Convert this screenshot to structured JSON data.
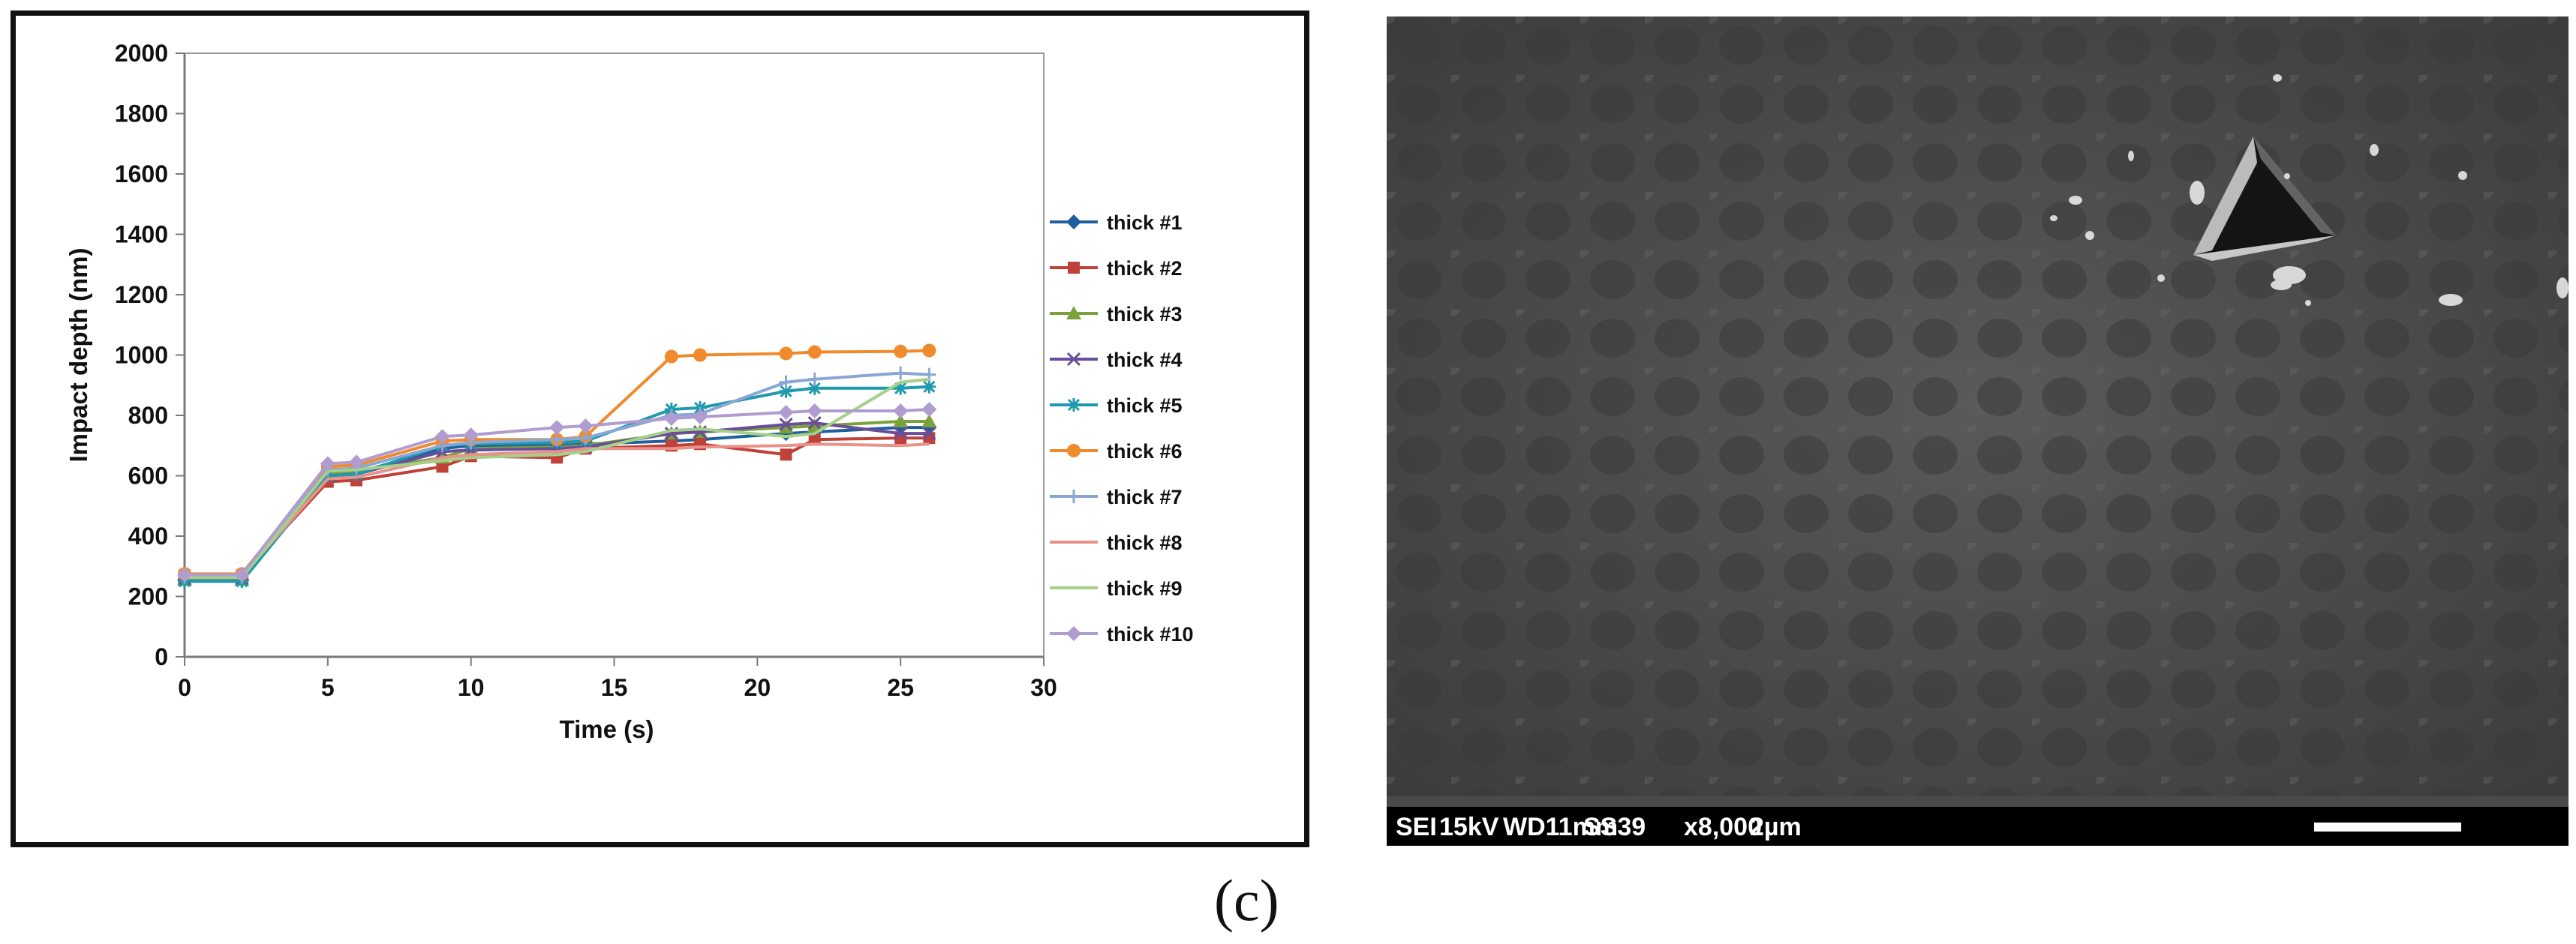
{
  "chart_data": {
    "type": "line",
    "title": "",
    "xlabel": "Time (s)",
    "ylabel": "Impact depth (nm)",
    "xlim": [
      0,
      30
    ],
    "ylim": [
      0,
      2000
    ],
    "xticks": [
      "0",
      "5",
      "10",
      "15",
      "20",
      "25",
      "30"
    ],
    "yticks": [
      "0",
      "200",
      "400",
      "600",
      "800",
      "1000",
      "1200",
      "1400",
      "1600",
      "1800",
      "2000"
    ],
    "grid": false,
    "legend_position": "right",
    "series": [
      {
        "name": "thick  #1",
        "color": "#1f5f9f",
        "marker": "diamond",
        "x": [
          0,
          2,
          5,
          6,
          9,
          10,
          13,
          14,
          17,
          18,
          21,
          22,
          25,
          26
        ],
        "y": [
          255,
          255,
          605,
          610,
          690,
          700,
          700,
          705,
          715,
          720,
          740,
          745,
          760,
          760
        ]
      },
      {
        "name": "thick #2",
        "color": "#c0413a",
        "marker": "square",
        "x": [
          0,
          2,
          5,
          6,
          9,
          10,
          13,
          14,
          17,
          18,
          21,
          22,
          25,
          26
        ],
        "y": [
          270,
          270,
          580,
          585,
          630,
          665,
          660,
          690,
          700,
          705,
          670,
          720,
          725,
          725
        ]
      },
      {
        "name": "thick #3",
        "color": "#7aa23a",
        "marker": "triangle",
        "x": [
          0,
          2,
          5,
          6,
          9,
          10,
          13,
          14,
          17,
          18,
          21,
          22,
          25,
          26
        ],
        "y": [
          255,
          255,
          610,
          615,
          660,
          690,
          695,
          700,
          740,
          745,
          760,
          765,
          780,
          780
        ]
      },
      {
        "name": "thick  #4",
        "color": "#6a4d9b",
        "marker": "x",
        "x": [
          0,
          2,
          5,
          6,
          9,
          10,
          13,
          14,
          17,
          18,
          21,
          22,
          25,
          26
        ],
        "y": [
          260,
          260,
          600,
          605,
          680,
          685,
          690,
          695,
          740,
          745,
          770,
          775,
          740,
          740
        ]
      },
      {
        "name": "thick  #5",
        "color": "#1f9aad",
        "marker": "star",
        "x": [
          0,
          2,
          5,
          6,
          9,
          10,
          13,
          14,
          17,
          18,
          21,
          22,
          25,
          26
        ],
        "y": [
          250,
          250,
          600,
          605,
          700,
          705,
          710,
          715,
          820,
          825,
          880,
          890,
          890,
          895
        ]
      },
      {
        "name": "thick  #6",
        "color": "#f08a2c",
        "marker": "circle",
        "x": [
          0,
          2,
          5,
          6,
          9,
          10,
          13,
          14,
          17,
          18,
          21,
          22,
          25,
          26
        ],
        "y": [
          275,
          275,
          630,
          635,
          715,
          720,
          720,
          730,
          995,
          1000,
          1005,
          1010,
          1012,
          1015
        ]
      },
      {
        "name": "thick  #7",
        "color": "#8aa6d4",
        "marker": "plus",
        "x": [
          0,
          2,
          5,
          6,
          9,
          10,
          13,
          14,
          17,
          18,
          21,
          22,
          25,
          26
        ],
        "y": [
          265,
          265,
          620,
          625,
          700,
          710,
          720,
          725,
          800,
          805,
          910,
          920,
          940,
          935
        ]
      },
      {
        "name": "thick  #8",
        "color": "#e8928a",
        "marker": "none",
        "x": [
          0,
          2,
          5,
          6,
          9,
          10,
          13,
          14,
          17,
          18,
          21,
          22,
          25,
          26
        ],
        "y": [
          268,
          268,
          590,
          595,
          660,
          670,
          680,
          690,
          690,
          695,
          700,
          705,
          700,
          705
        ]
      },
      {
        "name": "thick  #9",
        "color": "#a4d08a",
        "marker": "none",
        "x": [
          0,
          2,
          5,
          6,
          9,
          10,
          13,
          14,
          17,
          18,
          21,
          22,
          25,
          26
        ],
        "y": [
          262,
          262,
          615,
          620,
          650,
          660,
          670,
          680,
          750,
          755,
          730,
          740,
          910,
          920
        ]
      },
      {
        "name": "thick  #10",
        "color": "#b19cd0",
        "marker": "diamond",
        "x": [
          0,
          2,
          5,
          6,
          9,
          10,
          13,
          14,
          17,
          18,
          21,
          22,
          25,
          26
        ],
        "y": [
          272,
          272,
          640,
          645,
          730,
          735,
          760,
          765,
          790,
          795,
          810,
          815,
          815,
          820
        ]
      }
    ]
  },
  "sem": {
    "mode": "SEI",
    "voltage": "15kV",
    "working_distance": "WD11mm",
    "spot_size": "SS39",
    "magnification": "x8,000",
    "scale": "2µm"
  },
  "panel_label": "(c)"
}
